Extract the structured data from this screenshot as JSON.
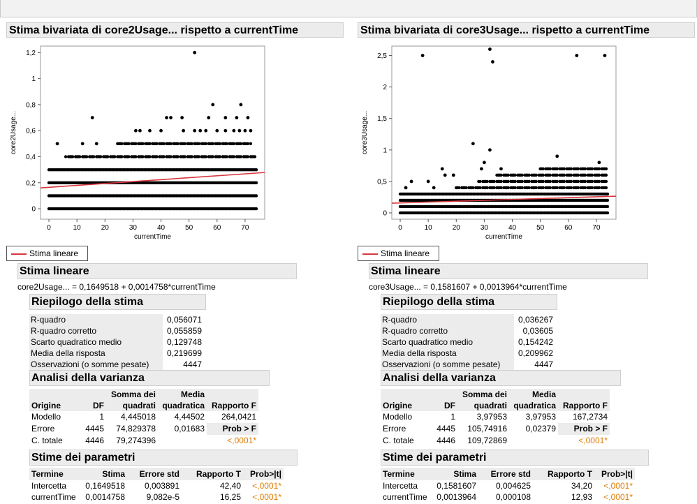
{
  "window": {
    "title": ""
  },
  "panels": [
    {
      "title": "Stima bivariata di core2Usage... rispetto a currentTime",
      "legend_label": "Stima lineare",
      "fit_section_title": "Stima lineare",
      "equation": "core2Usage... = 0,1649518 + 0,0014758*currentTime",
      "summary": {
        "title": "Riepilogo della stima",
        "rows": [
          {
            "label": "R-quadro",
            "value": "0,056071"
          },
          {
            "label": "R-quadro corretto",
            "value": "0,055859"
          },
          {
            "label": "Scarto quadratico medio",
            "value": "0,129748"
          },
          {
            "label": "Media della risposta",
            "value": "0,219699"
          },
          {
            "label": "Osservazioni (o somme pesate)",
            "value": "4447"
          }
        ]
      },
      "anova": {
        "title": "Analisi della varianza",
        "headers": {
          "origine": "Origine",
          "df": "DF",
          "ss": "Somma dei quadrati",
          "ms": "Media quadratica",
          "f": "Rapporto F"
        },
        "rows": [
          {
            "origine": "Modello",
            "df": "1",
            "ss": "4,445018",
            "ms": "4,44502",
            "f": "264,0421"
          },
          {
            "origine": "Errore",
            "df": "4445",
            "ss": "74,829378",
            "ms": "0,01683",
            "f": "Prob > F"
          },
          {
            "origine": "C. totale",
            "df": "4446",
            "ss": "79,274396",
            "ms": "",
            "f": "<,0001*"
          }
        ]
      },
      "params": {
        "title": "Stime dei parametri",
        "headers": {
          "termine": "Termine",
          "stima": "Stima",
          "err": "Errore std",
          "t": "Rapporto T",
          "p": "Prob>|t|"
        },
        "rows": [
          {
            "termine": "Intercetta",
            "stima": "0,1649518",
            "err": "0,003891",
            "t": "42,40",
            "p": "<,0001*"
          },
          {
            "termine": "currentTime",
            "stima": "0,0014758",
            "err": "9,082e-5",
            "t": "16,25",
            "p": "<,0001*"
          }
        ]
      }
    },
    {
      "title": "Stima bivariata di core3Usage... rispetto a currentTime",
      "legend_label": "Stima lineare",
      "fit_section_title": "Stima lineare",
      "equation": "core3Usage... = 0,1581607 + 0,0013964*currentTime",
      "summary": {
        "title": "Riepilogo della stima",
        "rows": [
          {
            "label": "R-quadro",
            "value": "0,036267"
          },
          {
            "label": "R-quadro corretto",
            "value": "0,03605"
          },
          {
            "label": "Scarto quadratico medio",
            "value": "0,154242"
          },
          {
            "label": "Media della risposta",
            "value": "0,209962"
          },
          {
            "label": "Osservazioni (o somme pesate)",
            "value": "4447"
          }
        ]
      },
      "anova": {
        "title": "Analisi della varianza",
        "headers": {
          "origine": "Origine",
          "df": "DF",
          "ss": "Somma dei quadrati",
          "ms": "Media quadratica",
          "f": "Rapporto F"
        },
        "rows": [
          {
            "origine": "Modello",
            "df": "1",
            "ss": "3,97953",
            "ms": "3,97953",
            "f": "167,2734"
          },
          {
            "origine": "Errore",
            "df": "4445",
            "ss": "105,74916",
            "ms": "0,02379",
            "f": "Prob > F"
          },
          {
            "origine": "C. totale",
            "df": "4446",
            "ss": "109,72869",
            "ms": "",
            "f": "<,0001*"
          }
        ]
      },
      "params": {
        "title": "Stime dei parametri",
        "headers": {
          "termine": "Termine",
          "stima": "Stima",
          "err": "Errore std",
          "t": "Rapporto T",
          "p": "Prob>|t|"
        },
        "rows": [
          {
            "termine": "Intercetta",
            "stima": "0,1581607",
            "err": "0,004625",
            "t": "34,20",
            "p": "<,0001*"
          },
          {
            "termine": "currentTime",
            "stima": "0,0013964",
            "err": "0,000108",
            "t": "12,93",
            "p": "<,0001*"
          }
        ]
      }
    }
  ],
  "colors": {
    "fit_line": "#d9363e",
    "point": "#000000",
    "significance": "#e07b00",
    "header_bg": "#ececec"
  },
  "chart_data": [
    {
      "type": "scatter",
      "title": "",
      "xlabel": "currentTime",
      "ylabel": "core2Usage...",
      "xlim": [
        -3,
        77
      ],
      "ylim": [
        -0.08,
        1.25
      ],
      "xticks": [
        {
          "v": 0,
          "label": "0"
        },
        {
          "v": 10,
          "label": "10"
        },
        {
          "v": 20,
          "label": "20"
        },
        {
          "v": 30,
          "label": "30"
        },
        {
          "v": 40,
          "label": "40"
        },
        {
          "v": 50,
          "label": "50"
        },
        {
          "v": 60,
          "label": "60"
        },
        {
          "v": 70,
          "label": "70"
        }
      ],
      "yticks": [
        {
          "v": 0,
          "label": "0"
        },
        {
          "v": 0.2,
          "label": "0,2"
        },
        {
          "v": 0.4,
          "label": "0,4"
        },
        {
          "v": 0.6,
          "label": "0,6"
        },
        {
          "v": 0.8,
          "label": "0,8"
        },
        {
          "v": 1,
          "label": "1"
        },
        {
          "v": 1.2,
          "label": "1,2"
        }
      ],
      "fit": {
        "intercept": 0.1649518,
        "slope": 0.0014758,
        "x_range": [
          -3,
          77
        ]
      },
      "bands": [
        {
          "y": 0.1,
          "x": [
            0,
            74
          ]
        },
        {
          "y": 0.2,
          "x": [
            0,
            74
          ]
        },
        {
          "y": 0.3,
          "x": [
            0,
            74
          ]
        },
        {
          "y": 0.0,
          "x": [
            0,
            74
          ]
        },
        {
          "y": 0.4,
          "x": [
            6,
            74
          ]
        },
        {
          "y": 0.5,
          "x": [
            24,
            72
          ]
        }
      ],
      "outliers": [
        {
          "x": 52,
          "y": 1.2
        },
        {
          "x": 15.5,
          "y": 0.7
        },
        {
          "x": 42,
          "y": 0.7
        },
        {
          "x": 43.5,
          "y": 0.7
        },
        {
          "x": 47.5,
          "y": 0.7
        },
        {
          "x": 58.5,
          "y": 0.8
        },
        {
          "x": 68.5,
          "y": 0.8
        },
        {
          "x": 57,
          "y": 0.7
        },
        {
          "x": 63,
          "y": 0.7
        },
        {
          "x": 67,
          "y": 0.7
        },
        {
          "x": 71,
          "y": 0.7
        },
        {
          "x": 31,
          "y": 0.6
        },
        {
          "x": 32.5,
          "y": 0.6
        },
        {
          "x": 36,
          "y": 0.6
        },
        {
          "x": 40,
          "y": 0.6
        },
        {
          "x": 48,
          "y": 0.6
        },
        {
          "x": 52,
          "y": 0.6
        },
        {
          "x": 54,
          "y": 0.6
        },
        {
          "x": 56,
          "y": 0.6
        },
        {
          "x": 60,
          "y": 0.6
        },
        {
          "x": 63,
          "y": 0.6
        },
        {
          "x": 66,
          "y": 0.6
        },
        {
          "x": 68,
          "y": 0.6
        },
        {
          "x": 70,
          "y": 0.6
        },
        {
          "x": 72,
          "y": 0.6
        },
        {
          "x": 3,
          "y": 0.5
        },
        {
          "x": 12,
          "y": 0.5
        },
        {
          "x": 17,
          "y": 0.5
        }
      ]
    },
    {
      "type": "scatter",
      "title": "",
      "xlabel": "currentTime",
      "ylabel": "core3Usage...",
      "xlim": [
        -3,
        77
      ],
      "ylim": [
        -0.1,
        2.65
      ],
      "xticks": [
        {
          "v": 0,
          "label": "0"
        },
        {
          "v": 10,
          "label": "10"
        },
        {
          "v": 20,
          "label": "20"
        },
        {
          "v": 30,
          "label": "30"
        },
        {
          "v": 40,
          "label": "40"
        },
        {
          "v": 50,
          "label": "50"
        },
        {
          "v": 60,
          "label": "60"
        },
        {
          "v": 70,
          "label": "70"
        }
      ],
      "yticks": [
        {
          "v": 0,
          "label": "0"
        },
        {
          "v": 0.5,
          "label": "0,5"
        },
        {
          "v": 1,
          "label": "1"
        },
        {
          "v": 1.5,
          "label": "1,5"
        },
        {
          "v": 2,
          "label": "2"
        },
        {
          "v": 2.5,
          "label": "2,5"
        }
      ],
      "fit": {
        "intercept": 0.1581607,
        "slope": 0.0013964,
        "x_range": [
          -3,
          77
        ]
      },
      "bands": [
        {
          "y": 0.0,
          "x": [
            0,
            74
          ]
        },
        {
          "y": 0.1,
          "x": [
            0,
            74
          ]
        },
        {
          "y": 0.2,
          "x": [
            0,
            74
          ]
        },
        {
          "y": 0.3,
          "x": [
            0,
            74
          ]
        },
        {
          "y": 0.4,
          "x": [
            20,
            74
          ]
        },
        {
          "y": 0.5,
          "x": [
            28,
            74
          ]
        },
        {
          "y": 0.6,
          "x": [
            34,
            74
          ]
        },
        {
          "y": 0.7,
          "x": [
            50,
            74
          ]
        }
      ],
      "outliers": [
        {
          "x": 8,
          "y": 2.5
        },
        {
          "x": 32,
          "y": 2.6
        },
        {
          "x": 33,
          "y": 2.4
        },
        {
          "x": 63,
          "y": 2.5
        },
        {
          "x": 73,
          "y": 2.5
        },
        {
          "x": 26,
          "y": 1.1
        },
        {
          "x": 32,
          "y": 1.0
        },
        {
          "x": 56,
          "y": 0.9
        },
        {
          "x": 30,
          "y": 0.8
        },
        {
          "x": 71,
          "y": 0.8
        },
        {
          "x": 15,
          "y": 0.7
        },
        {
          "x": 29,
          "y": 0.7
        },
        {
          "x": 36,
          "y": 0.7
        },
        {
          "x": 4,
          "y": 0.5
        },
        {
          "x": 10,
          "y": 0.5
        },
        {
          "x": 2,
          "y": 0.4
        },
        {
          "x": 12,
          "y": 0.4
        },
        {
          "x": 16,
          "y": 0.6
        },
        {
          "x": 19,
          "y": 0.6
        }
      ]
    }
  ]
}
